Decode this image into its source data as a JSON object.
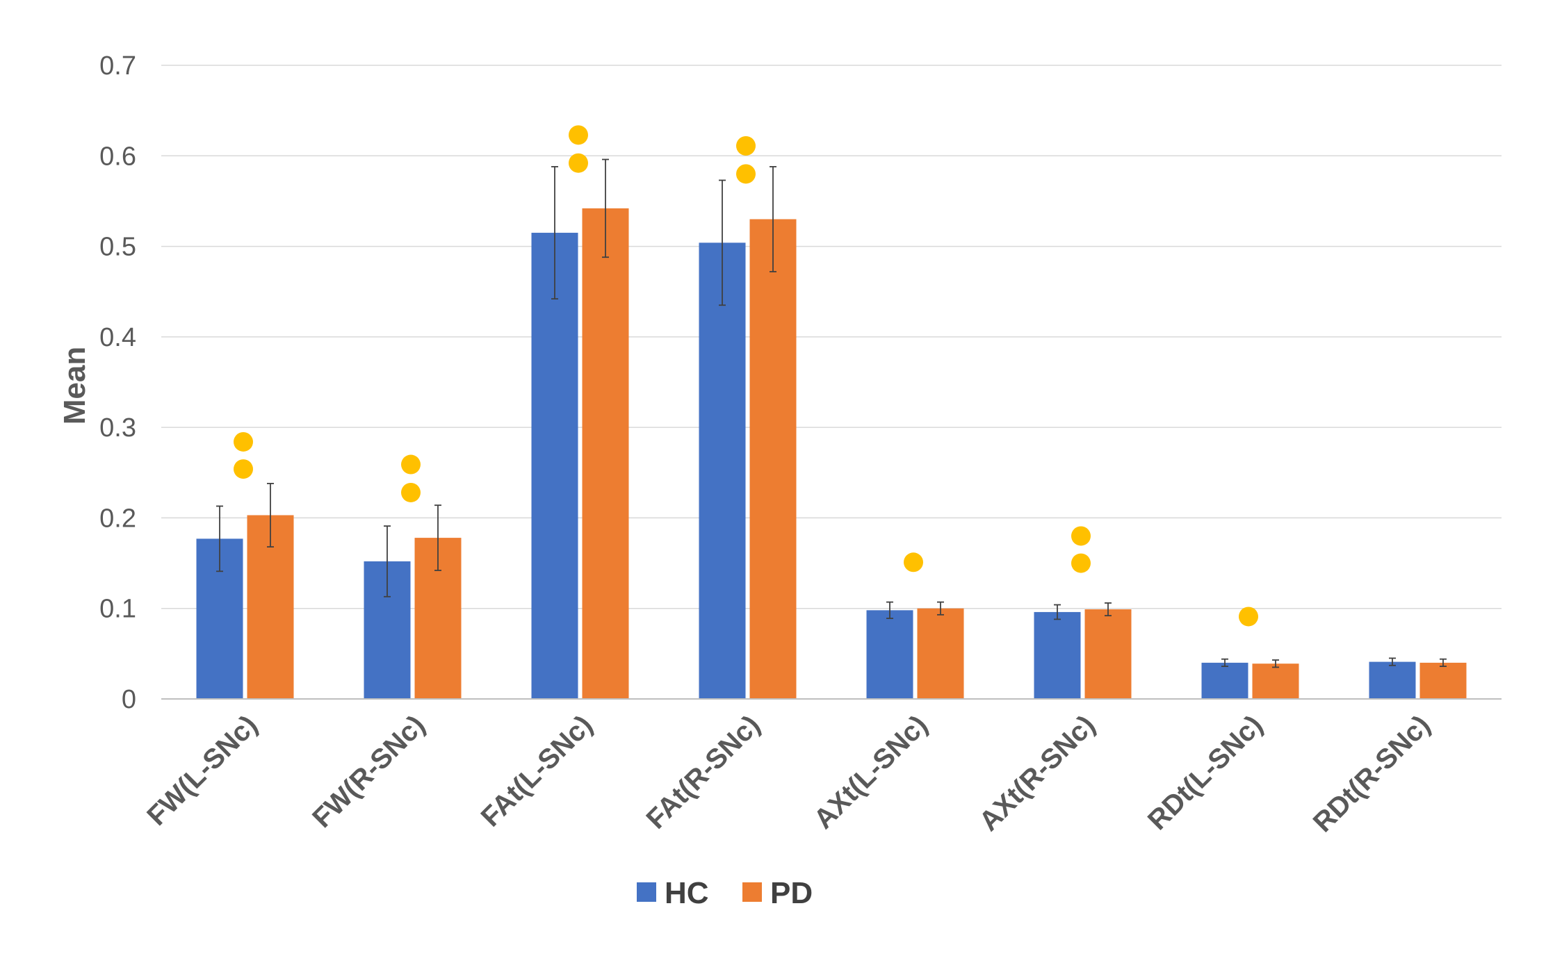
{
  "chart_data": {
    "type": "bar",
    "title": "",
    "xlabel": "",
    "ylabel": "Mean",
    "ylim": [
      0,
      0.7
    ],
    "yticks": [
      0,
      0.1,
      0.2,
      0.3,
      0.4,
      0.5,
      0.6,
      0.7
    ],
    "ytick_labels": [
      "0",
      "0.1",
      "0.2",
      "0.3",
      "0.4",
      "0.5",
      "0.6",
      "0.7"
    ],
    "grid": true,
    "legend_position": "bottom",
    "categories": [
      "FW(L-SNc)",
      "FW(R-SNc)",
      "FAt(L-SNc)",
      "FAt(R-SNc)",
      "AXt(L-SNc)",
      "AXt(R-SNc)",
      "RDt(L-SNc)",
      "RDt(R-SNc)"
    ],
    "series": [
      {
        "name": "HC",
        "color": "#4472C4",
        "values": [
          0.177,
          0.152,
          0.515,
          0.504,
          0.098,
          0.096,
          0.04,
          0.041
        ],
        "errors": [
          0.036,
          0.039,
          0.073,
          0.069,
          0.009,
          0.008,
          0.004,
          0.004
        ]
      },
      {
        "name": "PD",
        "color": "#ED7D31",
        "values": [
          0.203,
          0.178,
          0.542,
          0.53,
          0.1,
          0.099,
          0.039,
          0.04
        ],
        "errors": [
          0.035,
          0.036,
          0.054,
          0.058,
          0.007,
          0.007,
          0.004,
          0.004
        ]
      }
    ],
    "significance_markers": {
      "color": "#FFC000",
      "counts": [
        2,
        2,
        2,
        2,
        1,
        2,
        1,
        0
      ],
      "levels": [
        [
          0.254,
          0.284
        ],
        [
          0.228,
          0.259
        ],
        [
          0.592,
          0.623
        ],
        [
          0.58,
          0.611
        ],
        [
          0.151
        ],
        [
          0.15,
          0.18
        ],
        [
          0.091
        ],
        []
      ]
    }
  }
}
